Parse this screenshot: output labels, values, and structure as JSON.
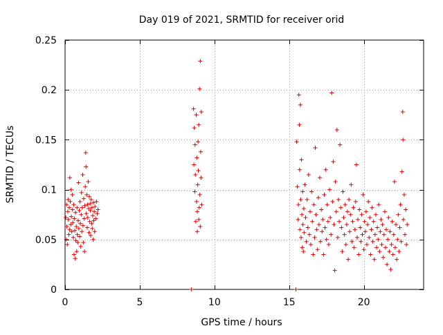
{
  "chart_data": {
    "type": "scatter",
    "title": "Day 019 of 2021, SRMTID for receiver orid",
    "xlabel": "GPS time / hours",
    "ylabel": "SRMTID / TECUs",
    "xlim": [
      0,
      24
    ],
    "ylim": [
      0,
      0.25
    ],
    "x_ticks": [
      0,
      5,
      10,
      15,
      20
    ],
    "x_tick_labels": [
      "0",
      "5",
      "10",
      "15",
      "20"
    ],
    "y_ticks": [
      0,
      0.05,
      0.1,
      0.15,
      0.2,
      0.25
    ],
    "y_tick_labels": [
      "0",
      "0.05",
      "0.1",
      "0.15",
      "0.2",
      "0.25"
    ],
    "grid": true,
    "marker": "plus",
    "color": "#e00000",
    "series": [
      {
        "points": [
          [
            0.05,
            0.072
          ],
          [
            0.08,
            0.05
          ],
          [
            0.1,
            0.085
          ],
          [
            0.12,
            0.063
          ],
          [
            0.15,
            0.045
          ],
          [
            0.18,
            0.078
          ],
          [
            0.2,
            0.09
          ],
          [
            0.22,
            0.07
          ],
          [
            0.25,
            0.055
          ],
          [
            0.28,
            0.082
          ],
          [
            0.3,
            0.06
          ],
          [
            0.32,
            0.112
          ],
          [
            0.35,
            0.088
          ],
          [
            0.38,
            0.065
          ],
          [
            0.4,
            0.1
          ],
          [
            0.42,
            0.073
          ],
          [
            0.45,
            0.058
          ],
          [
            0.48,
            0.095
          ],
          [
            0.5,
            0.08
          ],
          [
            0.52,
            0.067
          ],
          [
            0.55,
            0.052
          ],
          [
            0.58,
            0.085
          ],
          [
            0.6,
            0.035
          ],
          [
            0.62,
            0.071
          ],
          [
            0.65,
            0.059
          ],
          [
            0.68,
            0.031
          ],
          [
            0.7,
            0.077
          ],
          [
            0.72,
            0.049
          ],
          [
            0.75,
            0.063
          ],
          [
            0.78,
            0.038
          ],
          [
            0.8,
            0.082
          ],
          [
            0.82,
            0.055
          ],
          [
            0.85,
            0.047
          ],
          [
            0.88,
            0.069
          ],
          [
            0.9,
            0.107
          ],
          [
            0.92,
            0.061
          ],
          [
            0.95,
            0.079
          ],
          [
            0.98,
            0.053
          ],
          [
            1.0,
            0.088
          ],
          [
            1.02,
            0.066
          ],
          [
            1.05,
            0.043
          ],
          [
            1.08,
            0.075
          ],
          [
            1.1,
            0.097
          ],
          [
            1.12,
            0.058
          ],
          [
            1.15,
            0.082
          ],
          [
            1.18,
            0.115
          ],
          [
            1.2,
            0.064
          ],
          [
            1.22,
            0.047
          ],
          [
            1.25,
            0.091
          ],
          [
            1.28,
            0.071
          ],
          [
            1.3,
            0.038
          ],
          [
            1.32,
            0.084
          ],
          [
            1.35,
            0.103
          ],
          [
            1.38,
            0.137
          ],
          [
            1.4,
            0.123
          ],
          [
            1.42,
            0.076
          ],
          [
            1.45,
            0.095
          ],
          [
            1.48,
            0.062
          ],
          [
            1.5,
            0.085
          ],
          [
            1.52,
            0.072
          ],
          [
            1.55,
            0.108
          ],
          [
            1.58,
            0.081
          ],
          [
            1.6,
            0.057
          ],
          [
            1.62,
            0.093
          ],
          [
            1.65,
            0.068
          ],
          [
            1.68,
            0.086
          ],
          [
            1.7,
            0.079
          ],
          [
            1.72,
            0.054
          ],
          [
            1.75,
            0.09
          ],
          [
            1.78,
            0.066
          ],
          [
            1.8,
            0.082
          ],
          [
            1.82,
            0.061
          ],
          [
            1.85,
            0.074
          ],
          [
            1.88,
            0.05
          ],
          [
            1.9,
            0.087
          ],
          [
            1.92,
            0.069
          ],
          [
            1.95,
            0.078
          ],
          [
            1.98,
            0.058
          ],
          [
            2.0,
            0.083
          ],
          [
            2.05,
            0.071
          ],
          [
            2.1,
            0.088
          ],
          [
            2.15,
            0.076
          ],
          [
            2.2,
            0.08
          ],
          [
            8.45,
            0.0
          ],
          [
            8.6,
            0.181
          ],
          [
            8.62,
            0.125
          ],
          [
            8.65,
            0.162
          ],
          [
            8.68,
            0.098
          ],
          [
            8.7,
            0.145
          ],
          [
            8.72,
            0.115
          ],
          [
            8.75,
            0.068
          ],
          [
            8.78,
            0.175
          ],
          [
            8.8,
            0.088
          ],
          [
            8.82,
            0.132
          ],
          [
            8.85,
            0.078
          ],
          [
            8.88,
            0.105
          ],
          [
            8.9,
            0.148
          ],
          [
            8.92,
            0.119
          ],
          [
            8.95,
            0.165
          ],
          [
            8.98,
            0.082
          ],
          [
            9.0,
            0.201
          ],
          [
            9.02,
            0.095
          ],
          [
            9.05,
            0.229
          ],
          [
            9.08,
            0.138
          ],
          [
            9.1,
            0.112
          ],
          [
            9.12,
            0.178
          ],
          [
            9.15,
            0.085
          ],
          [
            9.05,
            0.063
          ],
          [
            8.95,
            0.07
          ],
          [
            8.85,
            0.058
          ],
          [
            15.45,
            0.0
          ],
          [
            15.5,
            0.148
          ],
          [
            15.55,
            0.103
          ],
          [
            15.6,
            0.07
          ],
          [
            15.62,
            0.085
          ],
          [
            15.65,
            0.195
          ],
          [
            15.68,
            0.165
          ],
          [
            15.7,
            0.12
          ],
          [
            15.72,
            0.06
          ],
          [
            15.75,
            0.185
          ],
          [
            15.78,
            0.09
          ],
          [
            15.8,
            0.052
          ],
          [
            15.82,
            0.13
          ],
          [
            15.85,
            0.075
          ],
          [
            15.88,
            0.042
          ],
          [
            15.9,
            0.098
          ],
          [
            15.92,
            0.065
          ],
          [
            15.95,
            0.038
          ],
          [
            15.98,
            0.081
          ],
          [
            16.0,
            0.057
          ],
          [
            16.05,
            0.105
          ],
          [
            16.1,
            0.072
          ],
          [
            16.15,
            0.048
          ],
          [
            16.2,
            0.09
          ],
          [
            16.25,
            0.062
          ],
          [
            16.3,
            0.115
          ],
          [
            16.35,
            0.055
          ],
          [
            16.4,
            0.078
          ],
          [
            16.45,
            0.045
          ],
          [
            16.5,
            0.098
          ],
          [
            16.55,
            0.068
          ],
          [
            16.6,
            0.035
          ],
          [
            16.65,
            0.085
          ],
          [
            16.7,
            0.052
          ],
          [
            16.75,
            0.142
          ],
          [
            16.8,
            0.075
          ],
          [
            16.85,
            0.06
          ],
          [
            16.9,
            0.04
          ],
          [
            16.95,
            0.092
          ],
          [
            17.0,
            0.065
          ],
          [
            17.05,
            0.112
          ],
          [
            17.1,
            0.048
          ],
          [
            17.15,
            0.08
          ],
          [
            17.2,
            0.058
          ],
          [
            17.25,
            0.07
          ],
          [
            17.3,
            0.035
          ],
          [
            17.35,
            0.095
          ],
          [
            17.4,
            0.062
          ],
          [
            17.45,
            0.12
          ],
          [
            17.5,
            0.05
          ],
          [
            17.55,
            0.085
          ],
          [
            17.6,
            0.068
          ],
          [
            17.65,
            0.045
          ],
          [
            17.7,
            0.1
          ],
          [
            17.75,
            0.072
          ],
          [
            17.8,
            0.055
          ],
          [
            17.85,
            0.197
          ],
          [
            17.9,
            0.088
          ],
          [
            17.95,
            0.128
          ],
          [
            18.0,
            0.065
          ],
          [
            18.05,
            0.019
          ],
          [
            18.1,
            0.108
          ],
          [
            18.15,
            0.078
          ],
          [
            18.2,
            0.16
          ],
          [
            18.25,
            0.052
          ],
          [
            18.3,
            0.09
          ],
          [
            18.35,
            0.068
          ],
          [
            18.4,
            0.145
          ],
          [
            18.45,
            0.082
          ],
          [
            18.5,
            0.062
          ],
          [
            18.55,
            0.038
          ],
          [
            18.6,
            0.098
          ],
          [
            18.65,
            0.072
          ],
          [
            18.7,
            0.055
          ],
          [
            18.75,
            0.085
          ],
          [
            18.8,
            0.045
          ],
          [
            18.85,
            0.065
          ],
          [
            18.9,
            0.078
          ],
          [
            18.95,
            0.03
          ],
          [
            19.0,
            0.09
          ],
          [
            19.05,
            0.058
          ],
          [
            19.1,
            0.075
          ],
          [
            19.15,
            0.105
          ],
          [
            19.2,
            0.048
          ],
          [
            19.25,
            0.068
          ],
          [
            19.3,
            0.082
          ],
          [
            19.35,
            0.042
          ],
          [
            19.4,
            0.06
          ],
          [
            19.45,
            0.088
          ],
          [
            19.5,
            0.125
          ],
          [
            19.55,
            0.052
          ],
          [
            19.6,
            0.07
          ],
          [
            19.65,
            0.035
          ],
          [
            19.7,
            0.08
          ],
          [
            19.75,
            0.062
          ],
          [
            19.8,
            0.048
          ],
          [
            19.85,
            0.075
          ],
          [
            19.9,
            0.055
          ],
          [
            19.95,
            0.095
          ],
          [
            20.0,
            0.04
          ],
          [
            20.05,
            0.068
          ],
          [
            20.1,
            0.058
          ],
          [
            20.15,
            0.078
          ],
          [
            20.2,
            0.045
          ],
          [
            20.25,
            0.065
          ],
          [
            20.3,
            0.088
          ],
          [
            20.35,
            0.052
          ],
          [
            20.4,
            0.072
          ],
          [
            20.45,
            0.035
          ],
          [
            20.5,
            0.06
          ],
          [
            20.55,
            0.082
          ],
          [
            20.6,
            0.048
          ],
          [
            20.65,
            0.068
          ],
          [
            20.7,
            0.03
          ],
          [
            20.75,
            0.055
          ],
          [
            20.8,
            0.075
          ],
          [
            20.85,
            0.042
          ],
          [
            20.9,
            0.062
          ],
          [
            20.95,
            0.05
          ],
          [
            21.0,
            0.085
          ],
          [
            21.05,
            0.038
          ],
          [
            21.1,
            0.058
          ],
          [
            21.15,
            0.07
          ],
          [
            21.2,
            0.045
          ],
          [
            21.25,
            0.065
          ],
          [
            21.3,
            0.032
          ],
          [
            21.35,
            0.055
          ],
          [
            21.4,
            0.078
          ],
          [
            21.45,
            0.042
          ],
          [
            21.5,
            0.06
          ],
          [
            21.55,
            0.025
          ],
          [
            21.6,
            0.05
          ],
          [
            21.65,
            0.072
          ],
          [
            21.7,
            0.038
          ],
          [
            21.75,
            0.058
          ],
          [
            21.8,
            0.02
          ],
          [
            21.85,
            0.045
          ],
          [
            21.9,
            0.068
          ],
          [
            21.95,
            0.035
          ],
          [
            22.0,
            0.055
          ],
          [
            22.05,
            0.108
          ],
          [
            22.1,
            0.042
          ],
          [
            22.15,
            0.065
          ],
          [
            22.2,
            0.03
          ],
          [
            22.25,
            0.05
          ],
          [
            22.3,
            0.075
          ],
          [
            22.35,
            0.038
          ],
          [
            22.4,
            0.062
          ],
          [
            22.45,
            0.085
          ],
          [
            22.5,
            0.048
          ],
          [
            22.55,
            0.118
          ],
          [
            22.6,
            0.178
          ],
          [
            22.62,
            0.15
          ],
          [
            22.65,
            0.07
          ],
          [
            22.7,
            0.095
          ],
          [
            22.75,
            0.055
          ],
          [
            22.8,
            0.08
          ],
          [
            22.85,
            0.045
          ],
          [
            22.9,
            0.065
          ]
        ]
      }
    ]
  }
}
